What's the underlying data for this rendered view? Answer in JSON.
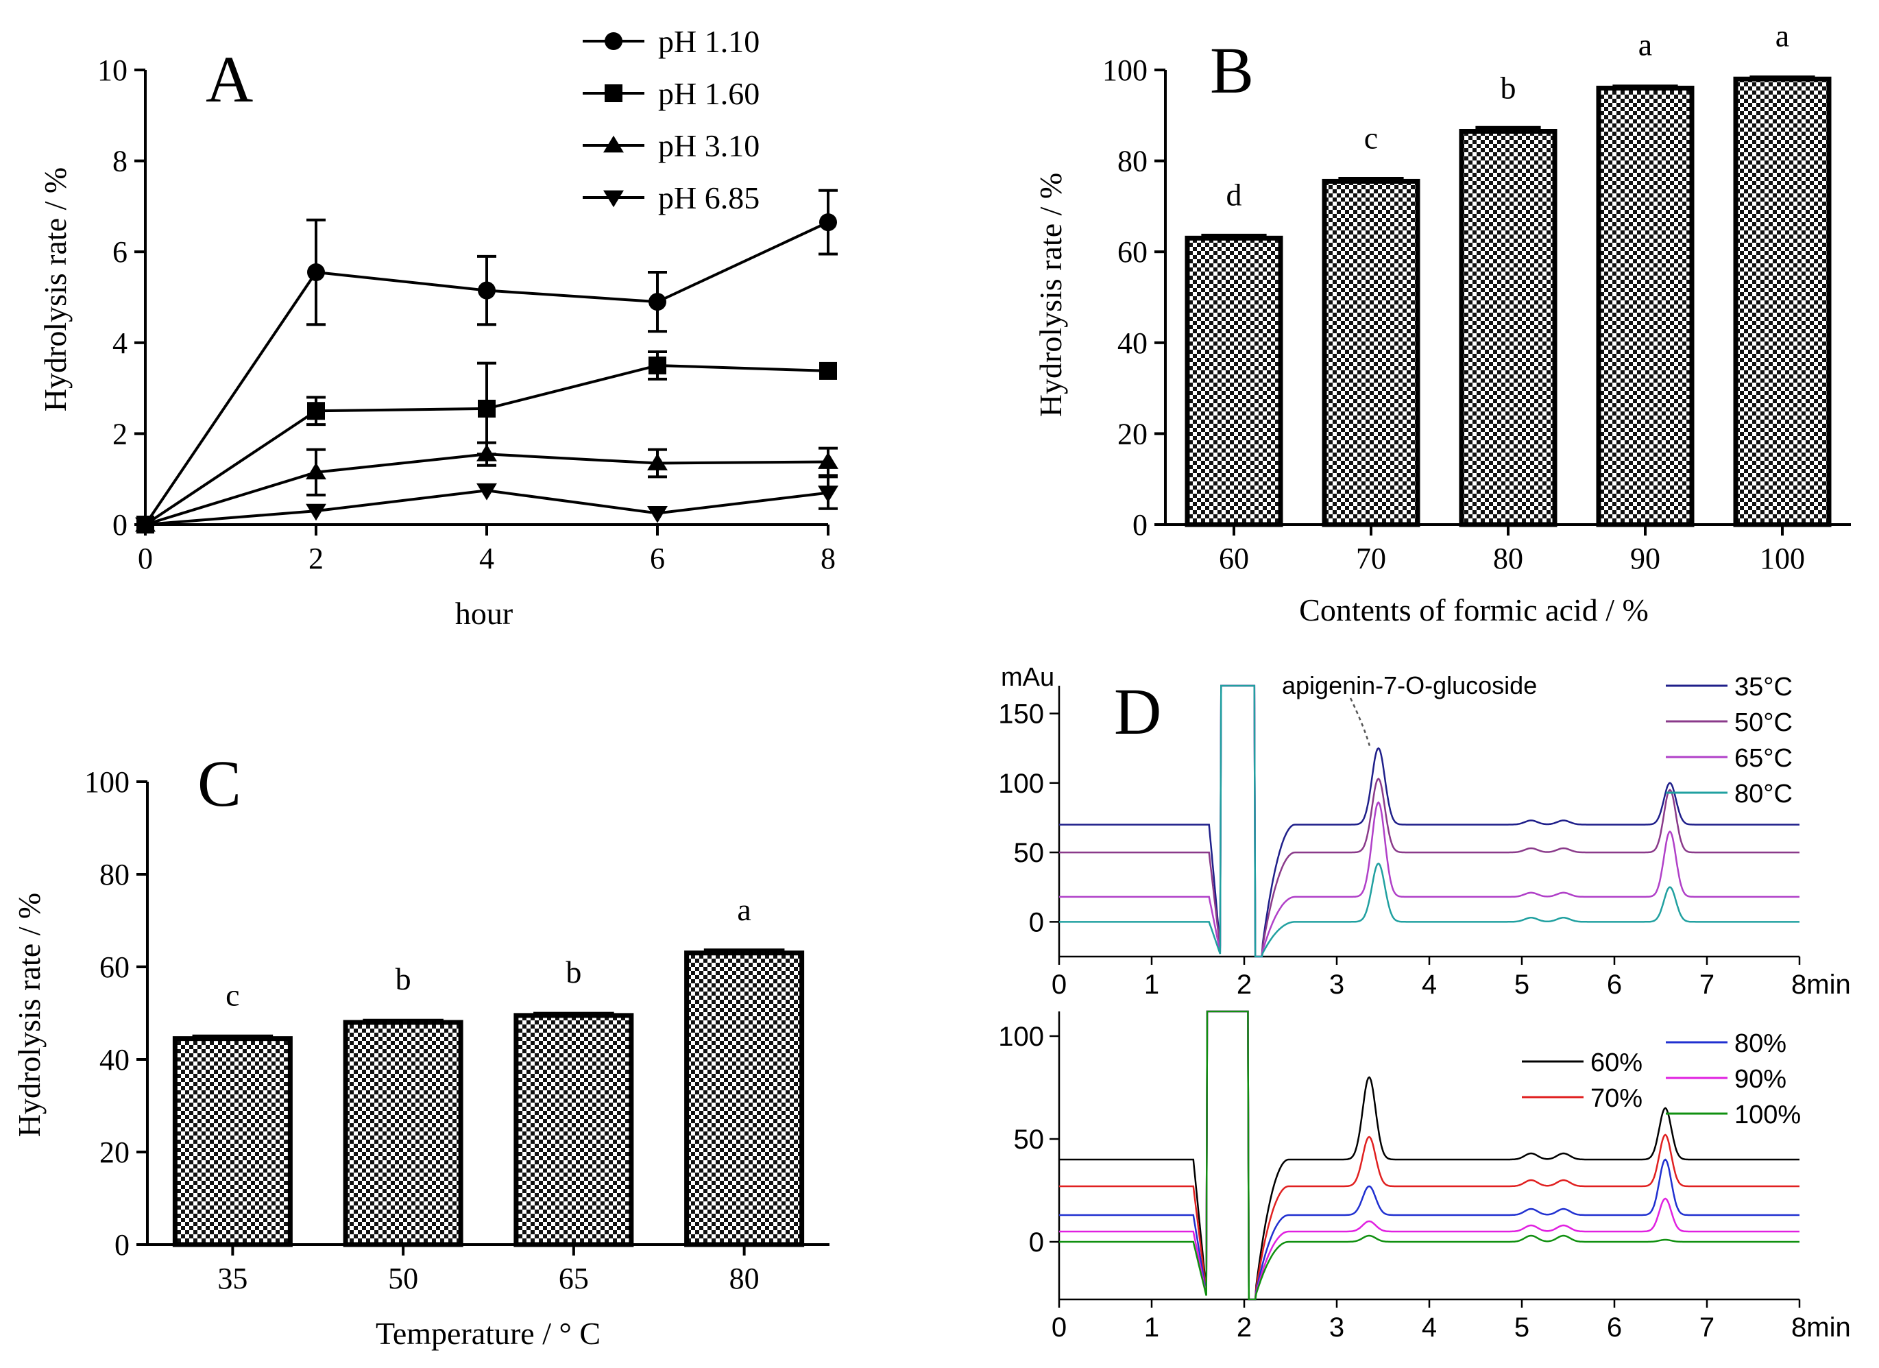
{
  "chart_data": [
    {
      "panel": "A",
      "type": "line",
      "xlabel": "hour",
      "ylabel": "Hydrolysis rate / %",
      "xlim": [
        0,
        8
      ],
      "ylim": [
        0,
        10
      ],
      "x_ticks": [
        "0",
        "2",
        "4",
        "6",
        "8"
      ],
      "y_ticks": [
        "0",
        "2",
        "4",
        "6",
        "8",
        "10"
      ],
      "x": [
        0,
        2,
        4,
        6,
        8
      ],
      "series": [
        {
          "name": "pH 1.10",
          "marker": "circle",
          "values": [
            0,
            5.55,
            5.15,
            4.9,
            6.65
          ],
          "errors": [
            0,
            1.15,
            0.75,
            0.65,
            0.7
          ]
        },
        {
          "name": "pH 1.60",
          "marker": "square",
          "values": [
            0,
            2.5,
            2.55,
            3.5,
            3.38
          ],
          "errors": [
            0,
            0.3,
            1.0,
            0.3,
            0
          ]
        },
        {
          "name": "pH 3.10",
          "marker": "triangle-up",
          "values": [
            0,
            1.15,
            1.55,
            1.35,
            1.38
          ],
          "errors": [
            0,
            0.5,
            0.25,
            0.3,
            0.3
          ]
        },
        {
          "name": "pH 6.85",
          "marker": "triangle-down",
          "values": [
            0,
            0.3,
            0.75,
            0.25,
            0.7
          ],
          "errors": [
            0,
            0,
            0,
            0,
            0.35
          ]
        }
      ]
    },
    {
      "panel": "B",
      "type": "bar",
      "xlabel": "Contents of formic acid / %",
      "ylabel": "Hydrolysis rate / %",
      "ylim": [
        0,
        100
      ],
      "y_ticks": [
        "0",
        "20",
        "40",
        "60",
        "80",
        "100"
      ],
      "categories": [
        "60",
        "70",
        "80",
        "90",
        "100"
      ],
      "values": [
        63,
        75.5,
        86.5,
        96,
        98
      ],
      "errors": [
        0.6,
        0.6,
        0.8,
        0.4,
        0.4
      ],
      "significance": [
        "d",
        "c",
        "b",
        "a",
        "a"
      ]
    },
    {
      "panel": "C",
      "type": "bar",
      "xlabel": "Temperature / ° C",
      "ylabel": "Hydrolysis rate / %",
      "ylim": [
        0,
        100
      ],
      "y_ticks": [
        "0",
        "20",
        "40",
        "60",
        "80",
        "100"
      ],
      "categories": [
        "35",
        "50",
        "65",
        "80"
      ],
      "values": [
        44.5,
        48,
        49.5,
        63
      ],
      "errors": [
        0.5,
        0.4,
        0.4,
        0.6
      ],
      "significance": [
        "c",
        "b",
        "b",
        "a"
      ]
    },
    {
      "panel": "D",
      "type": "line",
      "unit_label": "mAu",
      "annotation": "apigenin-7-O-glucoside",
      "x_ticks": [
        "0",
        "1",
        "2",
        "3",
        "4",
        "5",
        "6",
        "7",
        "8min"
      ],
      "top": {
        "ylim": [
          -25,
          170
        ],
        "y_ticks": [
          "0",
          "50",
          "100",
          "150"
        ],
        "series": [
          {
            "name": "35°C",
            "color": "#1f1f8a",
            "baseline": 70,
            "peak_3_5": 125,
            "peak_6_6": 100
          },
          {
            "name": "50°C",
            "color": "#8a3a8a",
            "baseline": 50,
            "peak_3_5": 103,
            "peak_6_6": 95
          },
          {
            "name": "65°C",
            "color": "#b040c8",
            "baseline": 18,
            "peak_3_5": 86,
            "peak_6_6": 65
          },
          {
            "name": "80°C",
            "color": "#20a0a0",
            "baseline": 0,
            "peak_3_5": 42,
            "peak_6_6": 25
          }
        ]
      },
      "bottom": {
        "ylim": [
          -28,
          112
        ],
        "y_ticks": [
          "0",
          "50",
          "100"
        ],
        "series": [
          {
            "name": "60%",
            "color": "#000000",
            "baseline": 40,
            "peak_3_4": 80,
            "peak_6_6": 65
          },
          {
            "name": "70%",
            "color": "#e02020",
            "baseline": 27,
            "peak_3_4": 51,
            "peak_6_6": 52
          },
          {
            "name": "80%",
            "color": "#2030d0",
            "baseline": 13,
            "peak_3_4": 27,
            "peak_6_6": 40
          },
          {
            "name": "90%",
            "color": "#e020e0",
            "baseline": 5,
            "peak_3_4": 10,
            "peak_6_6": 21
          },
          {
            "name": "100%",
            "color": "#109010",
            "baseline": 0,
            "peak_3_4": 3,
            "peak_6_6": 1
          }
        ]
      }
    }
  ]
}
